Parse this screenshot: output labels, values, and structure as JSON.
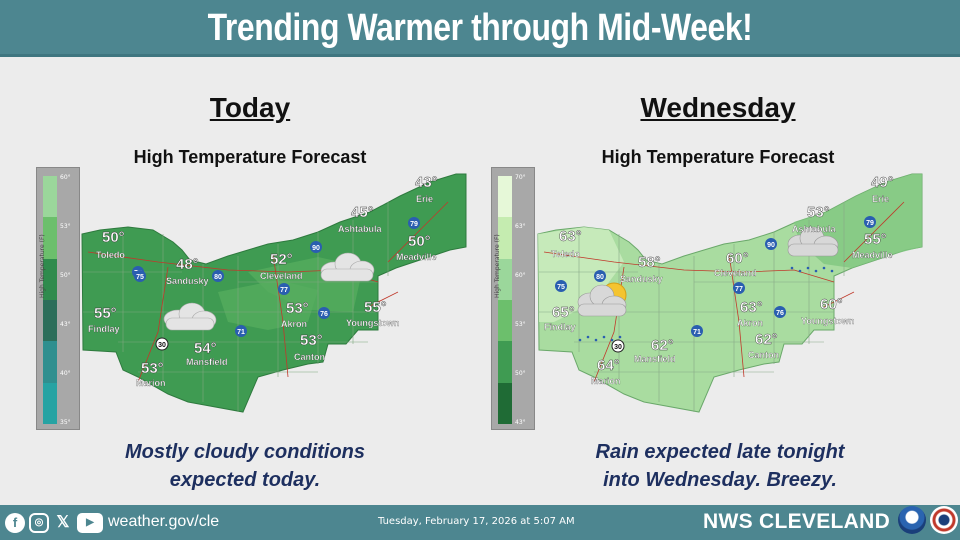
{
  "title": "Trending Warmer through Mid-Week!",
  "panels": [
    {
      "day": "Today",
      "subtitle": "High Temperature Forecast",
      "caption_line1": "Mostly cloudy conditions",
      "caption_line2": "expected today.",
      "legend_ticks": [
        "60°",
        "53°",
        "50°",
        "43°",
        "40°",
        "35°"
      ],
      "legend_label": "High Temperature (F)",
      "legend_colors": [
        "#9bd79b",
        "#6cbf6c",
        "#2f8b4d",
        "#2c6e5a",
        "#2f8f8f",
        "#26a3a3"
      ],
      "temps": [
        "50°",
        "48°",
        "52°",
        "45°",
        "43°",
        "50°",
        "55°",
        "53°",
        "55°",
        "53°",
        "54°",
        "53°"
      ],
      "cities": [
        "Toledo",
        "Sandusky",
        "Cleveland",
        "Ashtabula",
        "Erie",
        "Meadville",
        "Findlay",
        "Akron",
        "Youngstown",
        "Canton",
        "Mansfield",
        "Marion"
      ]
    },
    {
      "day": "Wednesday",
      "subtitle": "High Temperature Forecast",
      "caption_line1": "Rain expected late tonight",
      "caption_line2": "into Wednesday.  Breezy.",
      "legend_ticks": [
        "70°",
        "63°",
        "60°",
        "53°",
        "50°",
        "43°"
      ],
      "legend_label": "High Temperature (F)",
      "legend_colors": [
        "#e6f8d8",
        "#c5ecb0",
        "#9bd79b",
        "#6cbf6c",
        "#3f9b52",
        "#1f6b35"
      ],
      "temps": [
        "63°",
        "58°",
        "60°",
        "53°",
        "49°",
        "55°",
        "65°",
        "63°",
        "60°",
        "62°",
        "62°",
        "64°"
      ],
      "cities": [
        "Toledo",
        "Sandusky",
        "Cleveland",
        "Ashtabula",
        "Erie",
        "Meadville",
        "Findlay",
        "Akron",
        "Youngstown",
        "Canton",
        "Mansfield",
        "Marion"
      ]
    }
  ],
  "highways": [
    "75",
    "80",
    "90",
    "79",
    "77",
    "71",
    "76",
    "30"
  ],
  "footer": {
    "social_icons": [
      "facebook-icon",
      "instagram-icon",
      "x-icon",
      "youtube-icon"
    ],
    "website": "weather.gov/cle",
    "timestamp": "Tuesday, February 17, 2026 at 5:07 AM",
    "office": "NWS CLEVELAND"
  },
  "colors": {
    "banner": "#4d8690",
    "caption": "#1d2f5f"
  }
}
